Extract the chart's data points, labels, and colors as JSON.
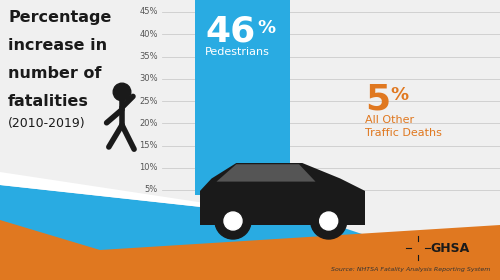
{
  "bg_color": "#f0f0f0",
  "title_lines": [
    "Percentage",
    "increase in",
    "number of",
    "fatalities"
  ],
  "title_subtitle": "(2010-2019)",
  "bar1_value": 46,
  "bar1_label_num": "46",
  "bar1_label_pct": "%",
  "bar1_label_sub": "Pedestrians",
  "bar1_color": "#29abe2",
  "bar2_value": 5,
  "bar2_label_num": "5",
  "bar2_label_pct": "%",
  "bar2_label_sub": "All Other\nTraffic Deaths",
  "bar2_color": "#e07820",
  "y_ticks": [
    "45%",
    "40%",
    "35%",
    "30%",
    "25%",
    "20%",
    "15%",
    "10%",
    "5%"
  ],
  "y_tick_vals": [
    45,
    40,
    35,
    30,
    25,
    20,
    15,
    10,
    5
  ],
  "y_max": 48,
  "y_min": 0,
  "source_text": "Source: NHTSA Fatality Analysis Reporting System",
  "ghsa_text": "GHSA",
  "stripe_blue": "#29abe2",
  "stripe_orange": "#e07820",
  "stripe_white": "#ffffff",
  "text_dark": "#1a1a1a",
  "text_orange": "#e07820",
  "text_white": "#ffffff",
  "grid_color": "#cccccc",
  "tick_label_color": "#555555",
  "car_color": "#1a1a1a",
  "car_window_color": "#555555",
  "car_wheel_inner": "#ffffff"
}
